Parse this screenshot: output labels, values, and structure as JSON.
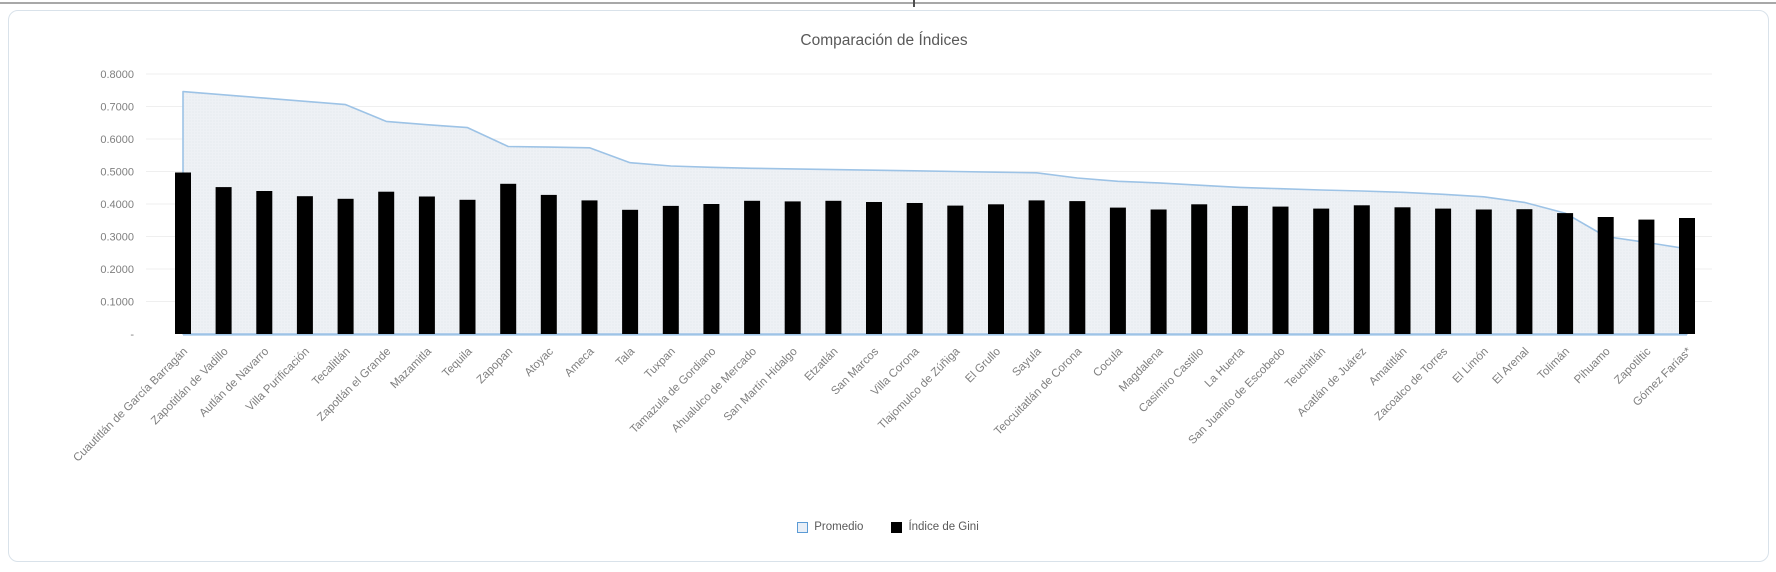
{
  "chart_data": {
    "type": "bar",
    "title": "Comparación de Índices",
    "grid": true,
    "legend_position": "bottom",
    "ylim": [
      0,
      0.8
    ],
    "ytick_step": 0.1,
    "yticks": [
      "0.8000",
      "0.7000",
      "0.6000",
      "0.5000",
      "0.4000",
      "0.3000",
      "0.2000",
      "0.1000",
      "-"
    ],
    "categories": [
      "Cuautitlán de García Barragán",
      "Zapotitlán de Vadillo",
      "Autlán de Navarro",
      "Villa Purificación",
      "Tecalitlán",
      "Zapotlán el Grande",
      "Mazamitla",
      "Tequila",
      "Zapopan",
      "Atoyac",
      "Ameca",
      "Tala",
      "Tuxpan",
      "Tamazula de Gordiano",
      "Ahualulco de Mercado",
      "San Martín Hidalgo",
      "Etzatlán",
      "San Marcos",
      "Villa Corona",
      "Tlajomulco de Zúñiga",
      "El Grullo",
      "Sayula",
      "Teocuitatlán de Corona",
      "Cocula",
      "Magdalena",
      "Casimiro Castillo",
      "La Huerta",
      "San Juanito de Escobedo",
      "Teuchitlán",
      "Acatlán de Juárez",
      "Amatitlán",
      "Zacoalco de Torres",
      "El Limón",
      "El Arenal",
      "Tolimán",
      "Pihuamo",
      "Zapotiltic",
      "Gómez Farías*"
    ],
    "series": [
      {
        "name": "Promedio",
        "kind": "area",
        "line_color": "#9dc3e6",
        "fill_color": "#eef1f5",
        "values": [
          0.746,
          0.736,
          0.726,
          0.716,
          0.706,
          0.654,
          0.644,
          0.635,
          0.577,
          0.575,
          0.573,
          0.527,
          0.517,
          0.513,
          0.51,
          0.508,
          0.506,
          0.504,
          0.502,
          0.5,
          0.498,
          0.496,
          0.48,
          0.47,
          0.465,
          0.458,
          0.451,
          0.447,
          0.443,
          0.44,
          0.436,
          0.43,
          0.422,
          0.405,
          0.372,
          0.3,
          0.282,
          0.262
        ]
      },
      {
        "name": "Índice de Gini",
        "kind": "bar",
        "color": "#000000",
        "values": [
          0.497,
          0.452,
          0.44,
          0.424,
          0.416,
          0.438,
          0.423,
          0.413,
          0.462,
          0.428,
          0.411,
          0.382,
          0.394,
          0.4,
          0.41,
          0.408,
          0.41,
          0.406,
          0.403,
          0.395,
          0.399,
          0.411,
          0.409,
          0.389,
          0.383,
          0.399,
          0.394,
          0.392,
          0.386,
          0.396,
          0.39,
          0.386,
          0.383,
          0.384,
          0.372,
          0.36,
          0.352,
          0.357
        ]
      }
    ],
    "axis_text_color": "#7f7f7f",
    "title_color": "#595959",
    "gridline_color": "#efefef"
  },
  "legend": {
    "promedio_label": "Promedio",
    "gini_label": "Índice de Gini"
  }
}
